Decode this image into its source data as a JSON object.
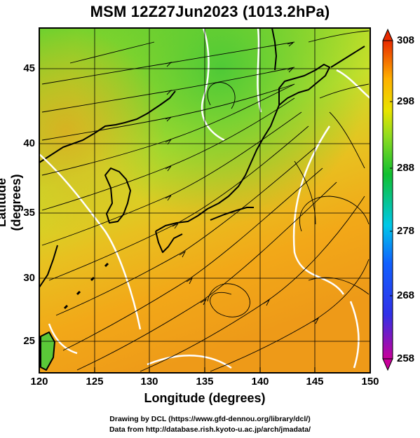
{
  "title": "MSM 12Z27Jun2023 (1013.2hPa)",
  "axes": {
    "xlabel": "Longitude (degrees)",
    "ylabel": "Latitude  (degrees)",
    "xticks": [
      "120",
      "125",
      "130",
      "135",
      "140",
      "145",
      "150"
    ],
    "yticks": [
      "25",
      "30",
      "35",
      "40",
      "45"
    ]
  },
  "colorbar": {
    "ticks": [
      "308",
      "298",
      "288",
      "278",
      "268",
      "258"
    ],
    "colors": [
      "#c8005a",
      "#1a3cff",
      "#00c8e8",
      "#10c020",
      "#c8e400",
      "#ffb000",
      "#ee2a00"
    ]
  },
  "credits": {
    "line1": "Drawing by DCL (https://www.gfd-dennou.org/library/dcl/)",
    "line2": "Data from http://database.rish.kyoto-u.ac.jp/arch/jmadata/"
  }
}
